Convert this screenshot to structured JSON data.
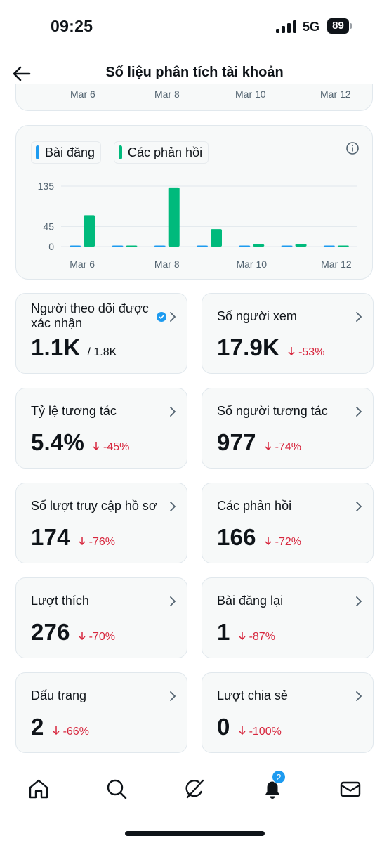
{
  "status_bar": {
    "time": "09:25",
    "network": "5G",
    "battery": "89"
  },
  "header": {
    "title": "Số liệu phân tích tài khoản",
    "back_icon": "arrow-left-icon"
  },
  "top_chart_ticks": [
    "Mar 6",
    "Mar 8",
    "Mar 10",
    "Mar 12"
  ],
  "chart_data": {
    "type": "bar",
    "legend": [
      {
        "name": "Bài đăng",
        "color": "#1d9bf0"
      },
      {
        "name": "Các phản hồi",
        "color": "#00ba7c"
      }
    ],
    "categories": [
      "Mar 6",
      "Mar 7",
      "Mar 8",
      "Mar 9",
      "Mar 10",
      "Mar 11",
      "Mar 12"
    ],
    "series": [
      {
        "name": "Bài đăng",
        "color": "#1d9bf0",
        "values": [
          1,
          0,
          1,
          1,
          0,
          0,
          0
        ]
      },
      {
        "name": "Các phản hồi",
        "color": "#00ba7c",
        "values": [
          70,
          1,
          132,
          39,
          5,
          6,
          0
        ]
      }
    ],
    "yticks": [
      0,
      45,
      135
    ],
    "ylim": [
      0,
      135
    ],
    "xtick_labels": [
      "Mar 6",
      "Mar 8",
      "Mar 10",
      "Mar 12"
    ],
    "grid": true,
    "legend_position": "top-left"
  },
  "stats": [
    {
      "label": "Người theo dõi được xác nhận",
      "value": "1.1K",
      "sub": "/ 1.8K",
      "change": "",
      "verified": true
    },
    {
      "label": "Số người xem",
      "value": "17.9K",
      "sub": "",
      "change": "-53%"
    },
    {
      "label": "Tỷ lệ tương tác",
      "value": "5.4%",
      "sub": "",
      "change": "-45%"
    },
    {
      "label": "Số người tương tác",
      "value": "977",
      "sub": "",
      "change": "-74%"
    },
    {
      "label": "Số lượt truy cập hồ sơ",
      "value": "174",
      "sub": "",
      "change": "-76%"
    },
    {
      "label": "Các phản hồi",
      "value": "166",
      "sub": "",
      "change": "-72%"
    },
    {
      "label": "Lượt thích",
      "value": "276",
      "sub": "",
      "change": "-70%"
    },
    {
      "label": "Bài đăng lại",
      "value": "1",
      "sub": "",
      "change": "-87%"
    },
    {
      "label": "Dấu trang",
      "value": "2",
      "sub": "",
      "change": "-66%"
    },
    {
      "label": "Lượt chia sẻ",
      "value": "0",
      "sub": "",
      "change": "-100%"
    }
  ],
  "tab_bar": {
    "items": [
      "home-icon",
      "search-icon",
      "grok-icon",
      "bell-icon",
      "mail-icon"
    ],
    "notification_count": "2"
  },
  "colors": {
    "accent": "#1d9bf0",
    "positive_bar": "#00ba7c",
    "negative_change": "#d7263d"
  }
}
